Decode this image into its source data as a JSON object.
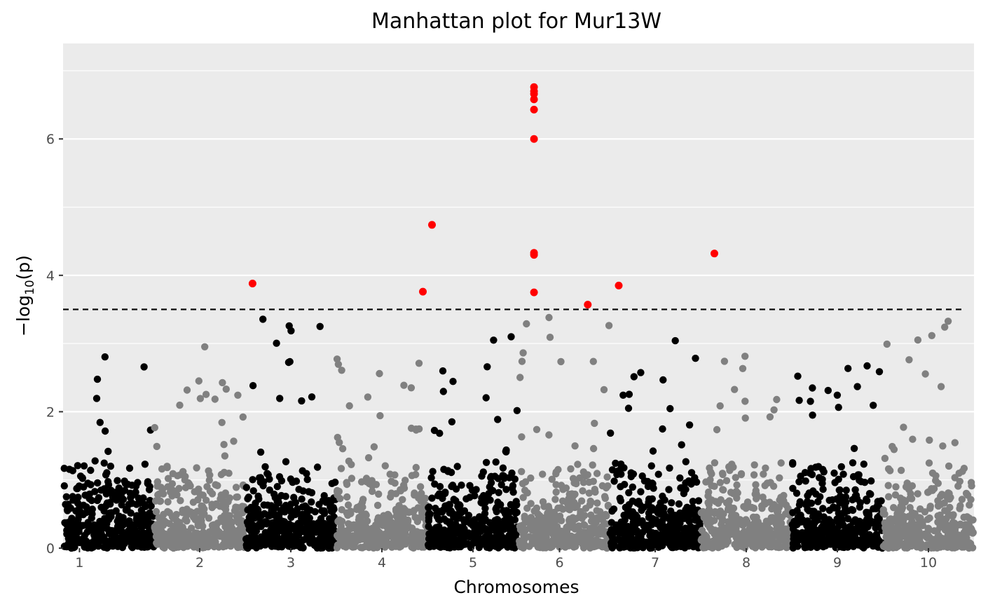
{
  "chart_data": {
    "type": "scatter",
    "title": "Manhattan plot for Mur13W",
    "xlabel": "Chromosomes",
    "ylabel_main": "−log",
    "ylabel_sub": "10",
    "ylabel_end": "(p)",
    "xlim": [
      0.5,
      10.5
    ],
    "ylim": [
      0,
      7.4
    ],
    "y_ticks": [
      0,
      2,
      4,
      6
    ],
    "threshold": 3.5,
    "grid": true,
    "colors": {
      "panel": "#ebebeb",
      "grid": "#ffffff",
      "odd_chrom": "#000000",
      "even_chrom": "#808080",
      "significant": "#ff0000",
      "threshold_line": "#000000"
    },
    "chromosomes": [
      {
        "label": "1",
        "start": 0.5,
        "end": 1.5,
        "tick": 0.68,
        "peak": 3.2
      },
      {
        "label": "2",
        "start": 1.5,
        "end": 2.5,
        "tick": 2.0,
        "peak": 3.0
      },
      {
        "label": "3",
        "start": 2.5,
        "end": 3.5,
        "tick": 3.0,
        "peak": 3.5
      },
      {
        "label": "4",
        "start": 3.5,
        "end": 4.5,
        "tick": 4.0,
        "peak": 2.9
      },
      {
        "label": "5",
        "start": 4.5,
        "end": 5.5,
        "tick": 5.0,
        "peak": 3.2
      },
      {
        "label": "6",
        "start": 5.5,
        "end": 6.5,
        "tick": 5.95,
        "peak": 3.5
      },
      {
        "label": "7",
        "start": 6.5,
        "end": 7.5,
        "tick": 7.0,
        "peak": 3.1
      },
      {
        "label": "8",
        "start": 7.5,
        "end": 8.5,
        "tick": 8.0,
        "peak": 3.2
      },
      {
        "label": "9",
        "start": 8.5,
        "end": 9.5,
        "tick": 9.0,
        "peak": 2.7
      },
      {
        "label": "10",
        "start": 9.5,
        "end": 10.5,
        "tick": 10.0,
        "peak": 3.4
      }
    ],
    "significant_points": [
      {
        "x": 2.58,
        "y": 3.88
      },
      {
        "x": 4.45,
        "y": 3.76
      },
      {
        "x": 4.55,
        "y": 4.74
      },
      {
        "x": 5.67,
        "y": 6.76
      },
      {
        "x": 5.67,
        "y": 6.7
      },
      {
        "x": 5.67,
        "y": 6.66
      },
      {
        "x": 5.67,
        "y": 6.58
      },
      {
        "x": 5.67,
        "y": 6.43
      },
      {
        "x": 5.67,
        "y": 6.0
      },
      {
        "x": 5.67,
        "y": 4.33
      },
      {
        "x": 5.67,
        "y": 4.3
      },
      {
        "x": 5.67,
        "y": 3.75
      },
      {
        "x": 6.26,
        "y": 3.57
      },
      {
        "x": 6.6,
        "y": 3.85
      },
      {
        "x": 7.65,
        "y": 4.32
      }
    ]
  }
}
